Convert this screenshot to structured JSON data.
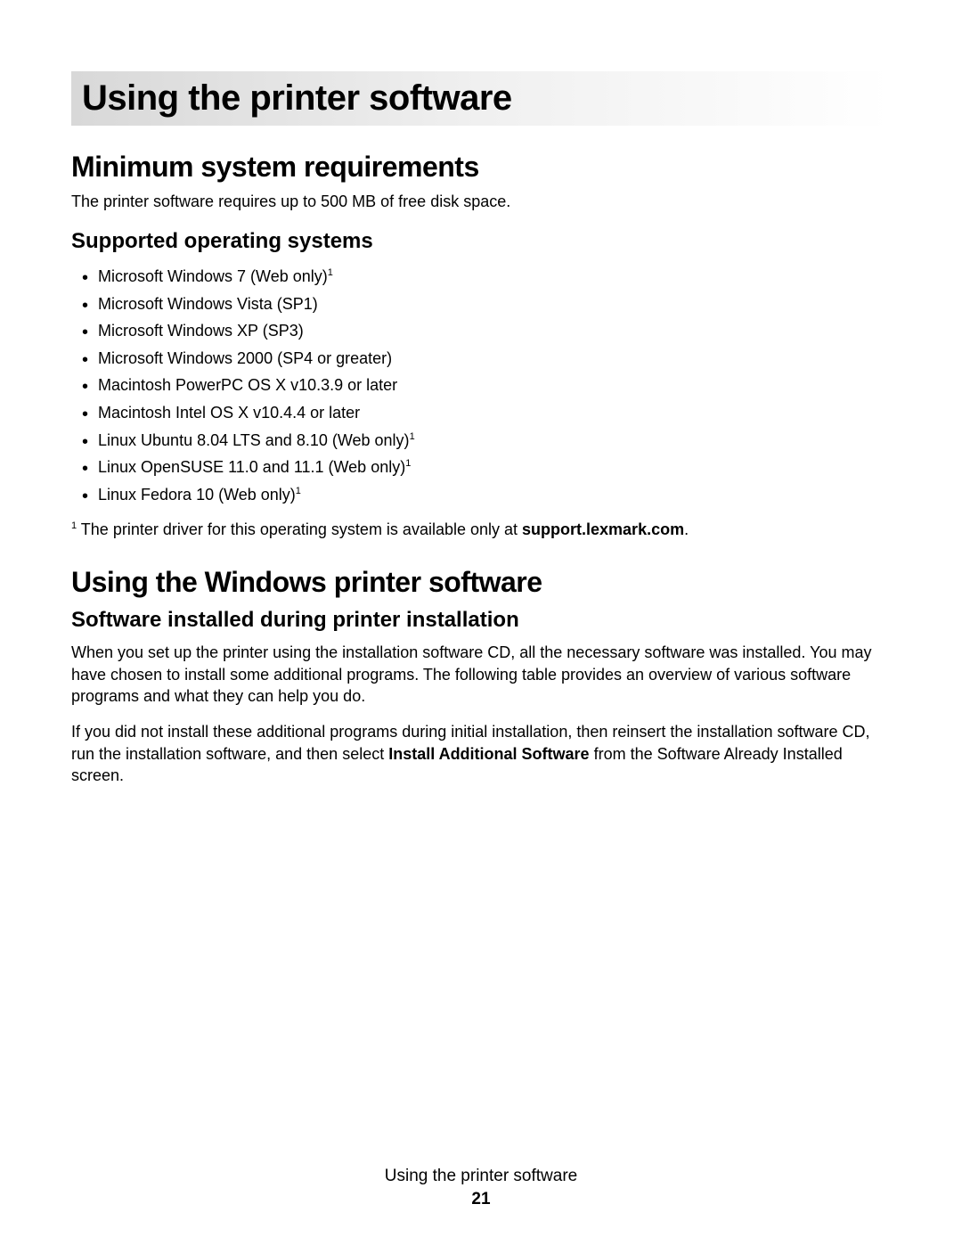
{
  "chapter_title": "Using the printer software",
  "section1": {
    "title": "Minimum system requirements",
    "intro": "The printer software requires up to 500 MB of free disk space.",
    "subsection": {
      "title": "Supported operating systems",
      "items": [
        {
          "text": "Microsoft Windows 7 (Web only)",
          "sup": "1"
        },
        {
          "text": "Microsoft Windows Vista (SP1)",
          "sup": ""
        },
        {
          "text": "Microsoft Windows XP (SP3)",
          "sup": ""
        },
        {
          "text": "Microsoft Windows 2000 (SP4 or greater)",
          "sup": ""
        },
        {
          "text": "Macintosh PowerPC OS X v10.3.9 or later",
          "sup": ""
        },
        {
          "text": "Macintosh Intel OS X v10.4.4 or later",
          "sup": ""
        },
        {
          "text": "Linux Ubuntu 8.04 LTS and 8.10 (Web only)",
          "sup": "1"
        },
        {
          "text": "Linux OpenSUSE 11.0 and 11.1 (Web only)",
          "sup": "1"
        },
        {
          "text": "Linux Fedora 10 (Web only)",
          "sup": "1"
        }
      ]
    },
    "footnote": {
      "marker": "1",
      "before": " The printer driver for this operating system is available only at ",
      "bold": "support.lexmark.com",
      "after": "."
    }
  },
  "section2": {
    "title": "Using the Windows printer software",
    "subsection": {
      "title": "Software installed during printer installation",
      "para1": "When you set up the printer using the installation software CD, all the necessary software was installed. You may have chosen to install some additional programs. The following table provides an overview of various software programs and what they can help you do.",
      "para2_before": "If you did not install these additional programs during initial installation, then reinsert the installation software CD, run the installation software, and then select ",
      "para2_bold": "Install Additional Software",
      "para2_after": " from the Software Already Installed screen."
    }
  },
  "footer": {
    "title": "Using the printer software",
    "page": "21"
  }
}
